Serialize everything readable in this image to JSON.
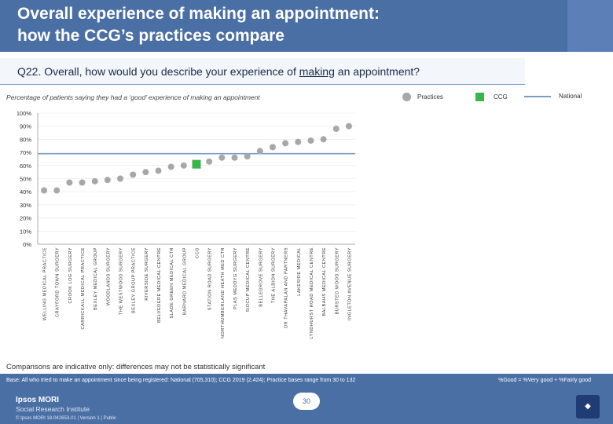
{
  "header": {
    "title_line1": "Overall experience of making an appointment:",
    "title_line2": "how the CCG’s practices compare"
  },
  "question": {
    "prefix": "Q22. Overall, how would you describe your experience of ",
    "underlined": "making",
    "suffix": " an appointment?"
  },
  "subtitle": "Percentage of patients saying they had a ‘good’ experience of making an appointment",
  "legend": {
    "practices": "Practices",
    "ccg": "CCG",
    "national": "National"
  },
  "colors": {
    "practice": "#a7a7a7",
    "ccg": "#3bb54a",
    "national": "#7a9cc8",
    "brand": "#4a6fa5"
  },
  "chart_data": {
    "type": "scatter",
    "ylim": [
      0,
      100
    ],
    "ytick_labels": [
      "0%",
      "10%",
      "20%",
      "30%",
      "40%",
      "50%",
      "60%",
      "70%",
      "80%",
      "90%",
      "100%"
    ],
    "categories": [
      "WELLING MEDICAL PRACTICE",
      "CRAYFORD TOWN SURGERY",
      "CROOK LOG SURGERY",
      "CARRICKALL MEDICAL PRACTICE",
      "BEXLEY MEDICAL GROUP",
      "WOODLANDS SURGERY",
      "THE WESTWOOD SURGERY",
      "BEXLEY GROUP PRACTICE",
      "RIVERSIDE SURGERY",
      "BELVEDERE MEDICAL CENTRE",
      "SLADE GREEN MEDICAL CTR",
      "BARNARD MEDICAL GROUP",
      "CCG",
      "STATION ROAD SURGERY",
      "NORTHUMBERLAND HEATH MED CTR",
      "PLAS MEDDYG SURGERY",
      "SIDCUP MEDICAL CENTRE",
      "BELLEGROVE SURGERY",
      "THE ALBION SURGERY",
      "DR THAVAPALAN AND PARTNERS",
      "LAKESIDE MEDICAL",
      "LYNDHURST ROAD MEDICAL CENTRE",
      "BALBAHS MEDICAL CENTRE",
      "BURSTED WOOD SURGERY",
      "INGLETON AVENUE SURGERY"
    ],
    "values": [
      41,
      41,
      47,
      47,
      48,
      49,
      50,
      53,
      55,
      56,
      59,
      60,
      61,
      63,
      66,
      66,
      67,
      71,
      74,
      77,
      78,
      79,
      80,
      88,
      90
    ],
    "ccg_index": 12,
    "national_value": 69
  },
  "note": "Comparisons are indicative only: differences may not be statistically significant",
  "footer": {
    "base": "Base: All who tried to make an appointment since being registered: National (705,310); CCG 2019 (2,424); Practice bases range from 30 to 132",
    "definition": "%Good = %Very good + %Fairly good",
    "logo_line1": "Ipsos MORI",
    "logo_line2": "Social Research Institute",
    "copyright": "© Ipsos MORI     18-042653-01 | Version 1 | Public",
    "page": "30"
  }
}
